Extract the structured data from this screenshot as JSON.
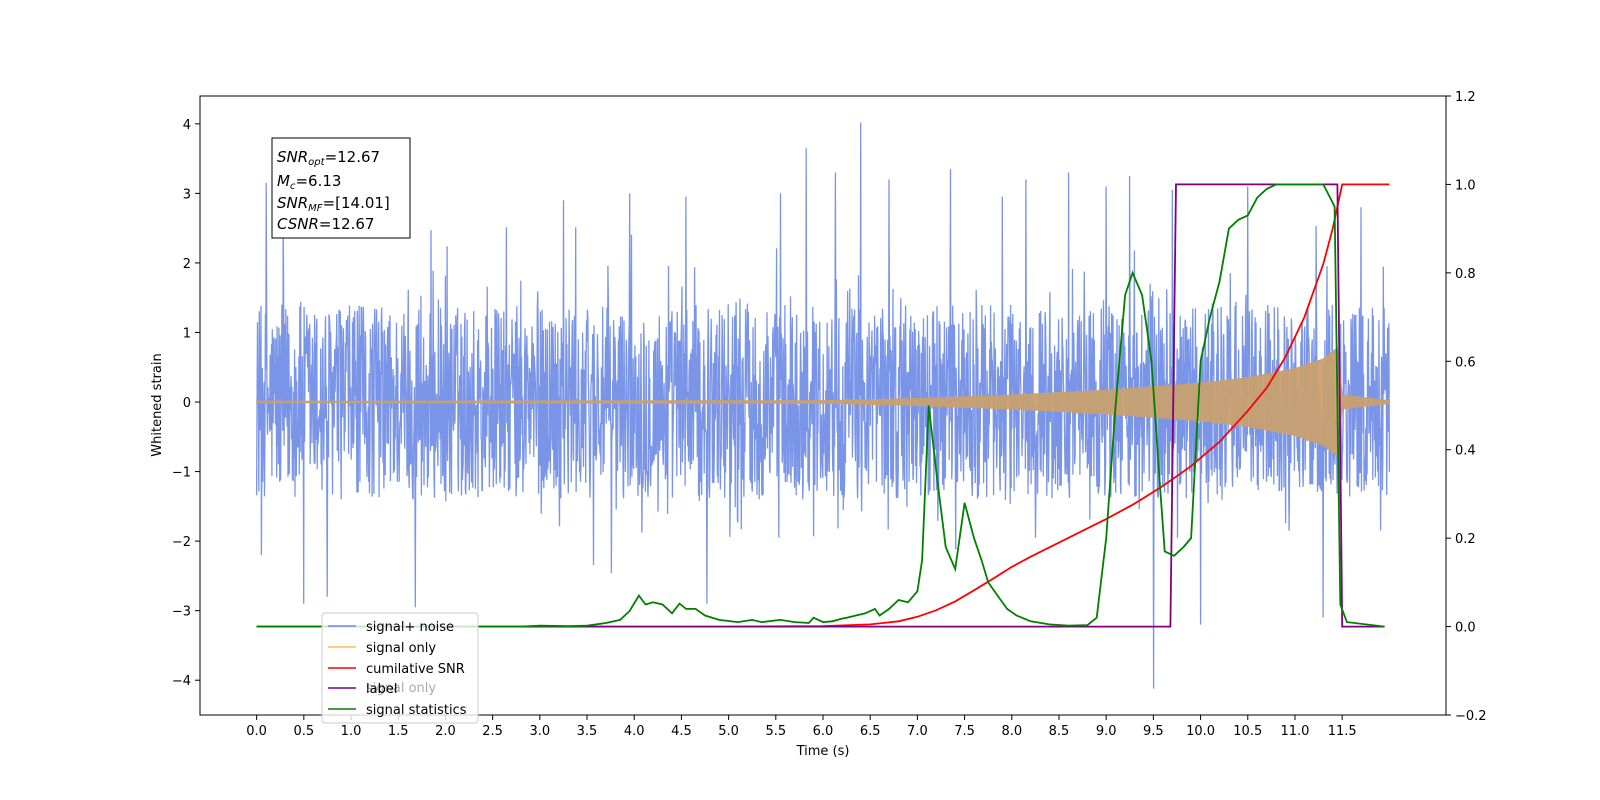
{
  "chart_data": {
    "type": "line",
    "title": "",
    "xlabel": "Time (s)",
    "ylabel": "Whitened strain",
    "y2label": "",
    "xlim": [
      -0.6,
      12.6
    ],
    "ylim": [
      -4.5,
      4.4
    ],
    "y2lim": [
      -0.2,
      1.2
    ],
    "xticks": [
      "0.0",
      "0.5",
      "1.0",
      "1.5",
      "2.0",
      "2.5",
      "3.0",
      "3.5",
      "4.0",
      "4.5",
      "5.0",
      "5.5",
      "6.0",
      "6.5",
      "7.0",
      "7.5",
      "8.0",
      "8.5",
      "9.0",
      "9.5",
      "10.0",
      "10.5",
      "11.0",
      "11.5"
    ],
    "yticks": [
      "4",
      "3",
      "2",
      "1",
      "0",
      "−1",
      "−2",
      "−3",
      "−4"
    ],
    "y2ticks": [
      "1.2",
      "1.0",
      "0.8",
      "0.6",
      "0.4",
      "0.2",
      "0.0",
      "−0.2"
    ],
    "grid": false,
    "legend_position": "lower-left",
    "annotation": {
      "lines": [
        {
          "sym": "SNR",
          "sub": "opt",
          "value": "=12.67"
        },
        {
          "sym": "M",
          "sub": "c",
          "value": "=6.13"
        },
        {
          "sym": "SNR",
          "sub": "MF",
          "value": "=[14.01]"
        },
        {
          "sym": "CSNR",
          "sub": "",
          "value": "=12.67"
        }
      ]
    },
    "legend": [
      {
        "label": "signal+ noise",
        "color": "#6b8ae6"
      },
      {
        "label": "signal only",
        "color": "#ffbe55"
      },
      {
        "label": "cumilative SNR",
        "color": "#ff0000"
      },
      {
        "label": "label",
        "color": "#800080"
      },
      {
        "label": "signal statistics",
        "color": "#008000"
      }
    ],
    "hidden_legend_text": "signal only",
    "noise": {
      "x_range": [
        0.0,
        12.0
      ],
      "typical_abs": 1.4,
      "spikes": [
        {
          "x": 0.1,
          "y": 3.15
        },
        {
          "x": 0.28,
          "y": 2.6
        },
        {
          "x": 0.05,
          "y": -2.2
        },
        {
          "x": 0.5,
          "y": -2.9
        },
        {
          "x": 0.75,
          "y": -2.8
        },
        {
          "x": 1.68,
          "y": -2.95
        },
        {
          "x": 3.25,
          "y": 2.9
        },
        {
          "x": 3.95,
          "y": 3.0
        },
        {
          "x": 4.55,
          "y": 2.95
        },
        {
          "x": 4.77,
          "y": -2.9
        },
        {
          "x": 5.55,
          "y": 3.0
        },
        {
          "x": 5.82,
          "y": 3.65
        },
        {
          "x": 6.13,
          "y": 3.3
        },
        {
          "x": 6.4,
          "y": 4.02
        },
        {
          "x": 6.7,
          "y": 3.2
        },
        {
          "x": 7.35,
          "y": 3.35
        },
        {
          "x": 7.9,
          "y": 2.95
        },
        {
          "x": 8.15,
          "y": 3.2
        },
        {
          "x": 8.6,
          "y": 3.3
        },
        {
          "x": 9.0,
          "y": 3.1
        },
        {
          "x": 9.25,
          "y": 3.25
        },
        {
          "x": 9.5,
          "y": -4.12
        },
        {
          "x": 9.7,
          "y": 3.05
        },
        {
          "x": 10.0,
          "y": -3.2
        },
        {
          "x": 10.5,
          "y": 3.1
        },
        {
          "x": 11.3,
          "y": -3.1
        },
        {
          "x": 11.7,
          "y": 2.8
        }
      ]
    },
    "series": [
      {
        "name": "signal only",
        "axis": "left",
        "color": "#c8a070",
        "envelope": [
          [
            0.0,
            0.01
          ],
          [
            6.0,
            0.02
          ],
          [
            7.0,
            0.05
          ],
          [
            8.0,
            0.1
          ],
          [
            9.0,
            0.17
          ],
          [
            10.0,
            0.27
          ],
          [
            10.5,
            0.35
          ],
          [
            11.0,
            0.48
          ],
          [
            11.3,
            0.62
          ],
          [
            11.45,
            0.78
          ],
          [
            11.5,
            0.1
          ],
          [
            12.0,
            0.02
          ]
        ]
      },
      {
        "name": "cumilative SNR",
        "axis": "right",
        "color": "#ff0000",
        "points": [
          [
            0.0,
            0.0
          ],
          [
            5.0,
            0.0
          ],
          [
            6.0,
            0.001
          ],
          [
            6.5,
            0.005
          ],
          [
            6.8,
            0.012
          ],
          [
            7.0,
            0.022
          ],
          [
            7.2,
            0.037
          ],
          [
            7.4,
            0.057
          ],
          [
            7.6,
            0.082
          ],
          [
            7.8,
            0.108
          ],
          [
            8.0,
            0.135
          ],
          [
            8.2,
            0.158
          ],
          [
            8.5,
            0.19
          ],
          [
            8.8,
            0.222
          ],
          [
            9.0,
            0.243
          ],
          [
            9.3,
            0.278
          ],
          [
            9.6,
            0.318
          ],
          [
            9.9,
            0.363
          ],
          [
            10.2,
            0.418
          ],
          [
            10.5,
            0.488
          ],
          [
            10.7,
            0.54
          ],
          [
            10.9,
            0.61
          ],
          [
            11.1,
            0.7
          ],
          [
            11.3,
            0.82
          ],
          [
            11.4,
            0.9
          ],
          [
            11.48,
            0.98
          ],
          [
            11.5,
            1.0
          ],
          [
            11.55,
            1.0
          ],
          [
            12.0,
            1.0
          ]
        ]
      },
      {
        "name": "label",
        "axis": "right",
        "color": "#800080",
        "points": [
          [
            0.0,
            0.0
          ],
          [
            9.68,
            0.0
          ],
          [
            9.74,
            1.0
          ],
          [
            11.45,
            1.0
          ],
          [
            11.5,
            0.0
          ],
          [
            11.95,
            0.0
          ]
        ]
      },
      {
        "name": "signal statistics",
        "axis": "right",
        "color": "#008000",
        "points": [
          [
            0.0,
            0.0
          ],
          [
            2.8,
            0.0
          ],
          [
            3.0,
            0.002
          ],
          [
            3.3,
            0.001
          ],
          [
            3.5,
            0.002
          ],
          [
            3.7,
            0.008
          ],
          [
            3.85,
            0.015
          ],
          [
            3.95,
            0.035
          ],
          [
            4.05,
            0.07
          ],
          [
            4.12,
            0.05
          ],
          [
            4.2,
            0.055
          ],
          [
            4.3,
            0.05
          ],
          [
            4.4,
            0.03
          ],
          [
            4.48,
            0.052
          ],
          [
            4.55,
            0.04
          ],
          [
            4.65,
            0.04
          ],
          [
            4.75,
            0.025
          ],
          [
            4.9,
            0.015
          ],
          [
            5.1,
            0.01
          ],
          [
            5.25,
            0.015
          ],
          [
            5.35,
            0.01
          ],
          [
            5.55,
            0.015
          ],
          [
            5.7,
            0.01
          ],
          [
            5.85,
            0.008
          ],
          [
            5.9,
            0.02
          ],
          [
            6.0,
            0.01
          ],
          [
            6.1,
            0.012
          ],
          [
            6.2,
            0.018
          ],
          [
            6.25,
            0.02
          ],
          [
            6.35,
            0.025
          ],
          [
            6.45,
            0.03
          ],
          [
            6.55,
            0.04
          ],
          [
            6.6,
            0.025
          ],
          [
            6.7,
            0.04
          ],
          [
            6.8,
            0.06
          ],
          [
            6.9,
            0.055
          ],
          [
            7.0,
            0.08
          ],
          [
            7.05,
            0.15
          ],
          [
            7.12,
            0.5
          ],
          [
            7.2,
            0.35
          ],
          [
            7.3,
            0.18
          ],
          [
            7.4,
            0.13
          ],
          [
            7.5,
            0.28
          ],
          [
            7.6,
            0.2
          ],
          [
            7.68,
            0.15
          ],
          [
            7.75,
            0.1
          ],
          [
            7.85,
            0.07
          ],
          [
            7.95,
            0.04
          ],
          [
            8.05,
            0.025
          ],
          [
            8.2,
            0.012
          ],
          [
            8.4,
            0.005
          ],
          [
            8.6,
            0.002
          ],
          [
            8.8,
            0.003
          ],
          [
            8.9,
            0.02
          ],
          [
            9.0,
            0.2
          ],
          [
            9.1,
            0.5
          ],
          [
            9.2,
            0.75
          ],
          [
            9.28,
            0.8
          ],
          [
            9.38,
            0.75
          ],
          [
            9.48,
            0.6
          ],
          [
            9.56,
            0.35
          ],
          [
            9.62,
            0.17
          ],
          [
            9.72,
            0.16
          ],
          [
            9.82,
            0.18
          ],
          [
            9.9,
            0.2
          ],
          [
            10.0,
            0.6
          ],
          [
            10.1,
            0.7
          ],
          [
            10.2,
            0.78
          ],
          [
            10.3,
            0.9
          ],
          [
            10.4,
            0.92
          ],
          [
            10.5,
            0.93
          ],
          [
            10.6,
            0.97
          ],
          [
            10.7,
            0.99
          ],
          [
            10.8,
            1.0
          ],
          [
            11.3,
            1.0
          ],
          [
            11.42,
            0.95
          ],
          [
            11.48,
            0.05
          ],
          [
            11.55,
            0.01
          ],
          [
            11.95,
            0.0
          ]
        ]
      }
    ]
  }
}
